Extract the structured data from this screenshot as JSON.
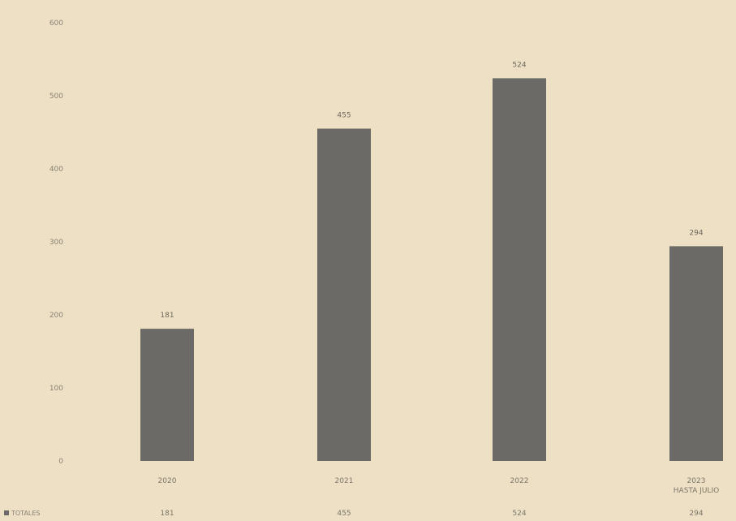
{
  "chart_data": {
    "type": "bar",
    "categories": [
      [
        "2020"
      ],
      [
        "2021"
      ],
      [
        "2022"
      ],
      [
        "2023",
        "HASTA JULIO"
      ]
    ],
    "series": [
      {
        "name": "TOTALES",
        "values": [
          181,
          455,
          524,
          294
        ]
      }
    ],
    "data_labels": [
      "181",
      "455",
      "524",
      "294"
    ],
    "table_values": [
      "181",
      "455",
      "524",
      "294"
    ],
    "yticks": [
      0,
      100,
      200,
      300,
      400,
      500,
      600
    ],
    "ylim": [
      0,
      600
    ],
    "grid": false,
    "legend": {
      "position": "bottom-left",
      "label": "TOTALES"
    },
    "colors": {
      "bar": "#6c6a67",
      "background": "#ede0c4"
    }
  }
}
